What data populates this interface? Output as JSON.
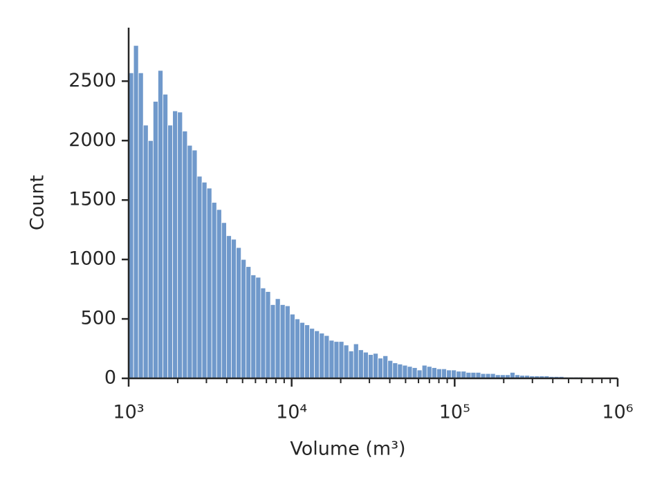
{
  "chart_data": {
    "type": "histogram",
    "xlabel": "Volume (m³)",
    "ylabel": "Count",
    "log_x": true,
    "color": "#7099cb",
    "bins": [
      1000,
      1072,
      1148,
      1230,
      1318,
      1413,
      1514,
      1622,
      1738,
      1862,
      1995,
      2138,
      2291,
      2455,
      2630,
      2818,
      3020,
      3236,
      3467,
      3715,
      3981,
      4266,
      4571,
      4898,
      5248,
      5623,
      6026,
      6457,
      6918,
      7413,
      7943,
      8511,
      9120,
      9772,
      10471,
      11220,
      12023,
      12882,
      13804,
      14791,
      15849,
      16982,
      18197,
      19498,
      20893,
      22387,
      23988,
      25704,
      27542,
      29512,
      31623,
      33884,
      36308,
      38905,
      41687,
      44668,
      47863,
      51286,
      54954,
      58884,
      63096,
      67608,
      72444,
      77625,
      83176,
      89125,
      95499,
      102329,
      109648,
      117490,
      125893,
      134896,
      144544,
      154882,
      165959,
      177828,
      190546,
      204174,
      218776,
      234423,
      251189,
      269153,
      288403,
      309030,
      331131,
      354813,
      380189,
      407380,
      436516,
      467735,
      501187,
      537032,
      575440,
      616595,
      660693,
      707946,
      758578,
      812831,
      870964,
      933254,
      1000000
    ],
    "values": [
      2570,
      2800,
      2570,
      2130,
      2000,
      2330,
      2590,
      2390,
      2130,
      2250,
      2240,
      2080,
      1960,
      1920,
      1700,
      1650,
      1600,
      1480,
      1420,
      1310,
      1200,
      1170,
      1100,
      1000,
      940,
      870,
      850,
      760,
      730,
      620,
      670,
      620,
      610,
      540,
      500,
      470,
      450,
      420,
      400,
      380,
      360,
      320,
      310,
      310,
      280,
      230,
      290,
      240,
      220,
      200,
      210,
      170,
      190,
      150,
      130,
      120,
      110,
      100,
      90,
      70,
      110,
      100,
      90,
      80,
      80,
      70,
      70,
      60,
      60,
      50,
      50,
      50,
      40,
      40,
      40,
      30,
      30,
      30,
      50,
      30,
      25,
      25,
      20,
      20,
      20,
      20,
      15,
      15,
      15,
      10,
      10,
      10,
      10,
      8,
      8,
      6,
      6,
      5,
      5,
      5
    ],
    "xlim": [
      1000,
      1000000
    ],
    "xticks": [
      {
        "value": 1000,
        "label": "10³"
      },
      {
        "value": 10000,
        "label": "10⁴"
      },
      {
        "value": 100000,
        "label": "10⁵"
      },
      {
        "value": 1000000,
        "label": "10⁶"
      }
    ],
    "xticks_minor": [
      2000,
      3000,
      4000,
      5000,
      6000,
      7000,
      8000,
      9000,
      20000,
      30000,
      40000,
      50000,
      60000,
      70000,
      80000,
      90000,
      200000,
      300000,
      400000,
      500000,
      600000,
      700000,
      800000,
      900000
    ],
    "ylim": [
      0,
      2950
    ],
    "yticks": [
      0,
      500,
      1000,
      1500,
      2000,
      2500
    ]
  }
}
